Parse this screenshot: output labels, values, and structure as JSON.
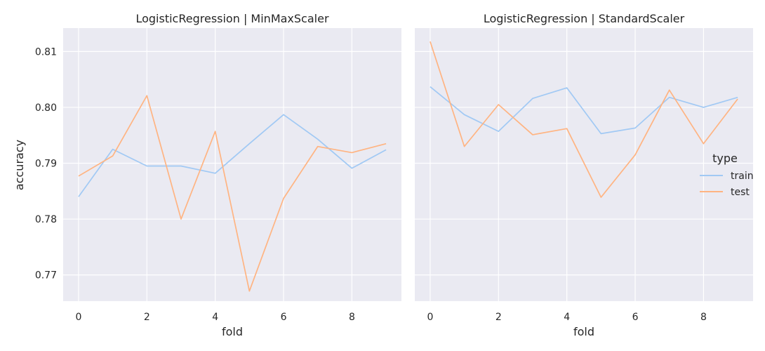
{
  "chart_data": {
    "type": "line",
    "facets": [
      {
        "title": "LogisticRegression | MinMaxScaler",
        "series": [
          {
            "name": "train",
            "x": [
              0,
              1,
              2,
              3,
              4,
              5,
              6,
              7,
              8,
              9
            ],
            "values": [
              0.784,
              0.7925,
              0.7895,
              0.7895,
              0.7882,
              0.7935,
              0.7987,
              0.7943,
              0.7891,
              0.7924
            ]
          },
          {
            "name": "test",
            "x": [
              0,
              1,
              2,
              3,
              4,
              5,
              6,
              7,
              8,
              9
            ],
            "values": [
              0.7877,
              0.7913,
              0.8021,
              0.78,
              0.7957,
              0.7671,
              0.7837,
              0.793,
              0.7919,
              0.7935
            ]
          }
        ]
      },
      {
        "title": "LogisticRegression | StandardScaler",
        "series": [
          {
            "name": "train",
            "x": [
              0,
              1,
              2,
              3,
              4,
              5,
              6,
              7,
              8,
              9
            ],
            "values": [
              0.8037,
              0.7987,
              0.7957,
              0.8016,
              0.8035,
              0.7953,
              0.7963,
              0.8018,
              0.8,
              0.8018
            ]
          },
          {
            "name": "test",
            "x": [
              0,
              1,
              2,
              3,
              4,
              5,
              6,
              7,
              8,
              9
            ],
            "values": [
              0.8118,
              0.793,
              0.8005,
              0.7951,
              0.7962,
              0.7839,
              0.7915,
              0.8031,
              0.7935,
              0.8015
            ]
          }
        ]
      }
    ],
    "xlabel": "fold",
    "ylabel": "accuracy",
    "xticks": [
      0,
      2,
      4,
      6,
      8
    ],
    "xtick_labels": [
      "0",
      "2",
      "4",
      "6",
      "8"
    ],
    "yticks": [
      0.77,
      0.78,
      0.79,
      0.8,
      0.81
    ],
    "ytick_labels": [
      "0.77",
      "0.78",
      "0.79",
      "0.80",
      "0.81"
    ],
    "xlim": [
      -0.45,
      9.45
    ],
    "ylim": [
      0.7653,
      0.8142
    ],
    "grid": true,
    "legend": {
      "title": "type",
      "placement": "right",
      "entries": [
        "train",
        "test"
      ]
    },
    "colors": {
      "train": "#a1c9f4",
      "test": "#ffb482",
      "panel_bg": "#eaeaf2",
      "grid": "#ffffff"
    }
  }
}
